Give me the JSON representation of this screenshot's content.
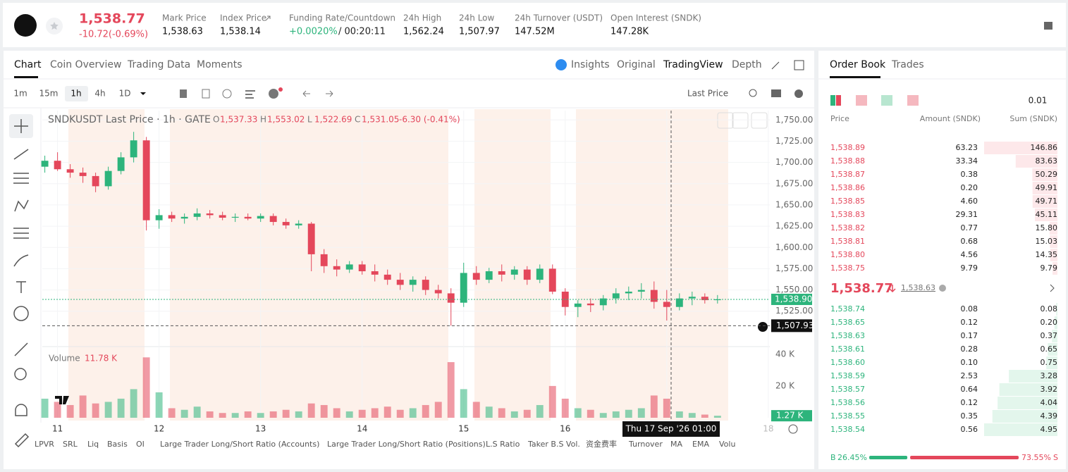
{
  "header": {
    "price": "1,538.77",
    "change": "-10.72(-0.69%)",
    "stats": [
      {
        "label": "Mark Price",
        "value": "1,538.63"
      },
      {
        "label": "Index Price",
        "value": "1,538.14"
      },
      {
        "label": "Funding Rate/Countdown",
        "value": "+0.0020%",
        "extra": "/ 00:20:11"
      },
      {
        "label": "24h High",
        "value": "1,562.24"
      },
      {
        "label": "24h Low",
        "value": "1,507.97"
      },
      {
        "label": "24h Turnover (USDT)",
        "value": "147.52M"
      },
      {
        "label": "Open Interest (SNDK)",
        "value": "147.28K"
      }
    ]
  },
  "chart_tabs": [
    "Chart",
    "Coin Overview",
    "Trading Data",
    "Moments"
  ],
  "view_tabs": [
    "Insights",
    "Original",
    "TradingView",
    "Depth"
  ],
  "intervals": [
    "1m",
    "15m",
    "1h",
    "4h",
    "1D"
  ],
  "price_source": "Last Price",
  "chart": {
    "type": "candlestick",
    "title": "SNDKUSDT Last Price · 1h · GATE",
    "legend_ohlc": [
      [
        "O",
        "1,537.33"
      ],
      [
        "H",
        "1,553.02"
      ],
      [
        "L",
        "1,522.69"
      ],
      [
        "C",
        "1,531.05"
      ]
    ],
    "legend_change": "-6.30 (-0.41%)",
    "up_color": "#2db47c",
    "down_color": "#e4475b",
    "x": [
      10.875,
      11,
      11.125,
      11.25,
      11.375,
      11.5,
      11.625,
      11.75,
      11.875,
      12,
      12.125,
      12.25,
      12.375,
      12.5,
      12.625,
      12.75,
      12.875,
      13,
      13.125,
      13.25,
      13.375,
      13.5,
      13.625,
      13.75,
      13.875,
      14,
      14.125,
      14.25,
      14.375,
      14.5,
      14.625,
      14.75,
      14.875,
      15,
      15.125,
      15.25,
      15.375,
      15.5,
      15.625,
      15.75,
      15.875,
      16,
      16.125,
      16.25,
      16.375,
      16.5,
      16.625,
      16.75,
      16.875,
      17,
      17.125,
      17.25,
      17.375,
      17.5
    ],
    "open": [
      1695,
      1702,
      1692,
      1688,
      1684,
      1672,
      1690,
      1706,
      1726,
      1632,
      1638,
      1634,
      1636,
      1640,
      1638,
      1635,
      1636,
      1634,
      1637,
      1630,
      1626,
      1628,
      1592,
      1578,
      1574,
      1580,
      1572,
      1568,
      1562,
      1556,
      1562,
      1550,
      1546,
      1535,
      1570,
      1562,
      1572,
      1568,
      1574,
      1562,
      1575,
      1548,
      1530,
      1534,
      1532,
      1540,
      1546,
      1548,
      1550,
      1536,
      1530,
      1540,
      1542,
      1538
    ],
    "high": [
      1708,
      1712,
      1698,
      1694,
      1688,
      1695,
      1712,
      1736,
      1730,
      1645,
      1642,
      1640,
      1646,
      1644,
      1642,
      1640,
      1640,
      1640,
      1640,
      1634,
      1632,
      1630,
      1598,
      1586,
      1584,
      1584,
      1580,
      1574,
      1570,
      1566,
      1566,
      1556,
      1552,
      1582,
      1578,
      1576,
      1580,
      1578,
      1578,
      1580,
      1580,
      1552,
      1538,
      1540,
      1544,
      1552,
      1554,
      1558,
      1560,
      1550,
      1546,
      1548,
      1546,
      1544
    ],
    "low": [
      1688,
      1690,
      1682,
      1676,
      1665,
      1668,
      1686,
      1700,
      1620,
      1622,
      1630,
      1628,
      1632,
      1634,
      1632,
      1630,
      1632,
      1630,
      1626,
      1622,
      1622,
      1572,
      1570,
      1566,
      1570,
      1568,
      1560,
      1556,
      1550,
      1548,
      1544,
      1540,
      1508,
      1530,
      1556,
      1558,
      1560,
      1562,
      1556,
      1558,
      1545,
      1520,
      1518,
      1524,
      1526,
      1534,
      1538,
      1540,
      1528,
      1514,
      1526,
      1532,
      1534,
      1534
    ],
    "close": [
      1702,
      1692,
      1688,
      1684,
      1672,
      1690,
      1706,
      1726,
      1632,
      1638,
      1634,
      1636,
      1640,
      1638,
      1635,
      1636,
      1634,
      1637,
      1630,
      1626,
      1628,
      1592,
      1578,
      1574,
      1580,
      1572,
      1568,
      1562,
      1556,
      1562,
      1550,
      1546,
      1535,
      1570,
      1562,
      1572,
      1568,
      1574,
      1562,
      1575,
      1548,
      1530,
      1534,
      1532,
      1540,
      1546,
      1548,
      1550,
      1536,
      1530,
      1540,
      1542,
      1538,
      1539
    ],
    "volume": [
      12,
      10,
      8,
      14,
      9,
      10,
      12,
      18,
      38,
      16,
      6,
      5,
      7,
      4,
      3,
      3,
      4,
      3,
      4,
      5,
      4,
      9,
      8,
      6,
      4,
      5,
      6,
      7,
      5,
      6,
      8,
      10,
      35,
      18,
      10,
      7,
      6,
      4,
      5,
      8,
      20,
      12,
      6,
      5,
      3,
      4,
      5,
      6,
      14,
      12,
      4,
      3,
      2,
      1.27
    ],
    "xlim": [
      10.85,
      18.015
    ],
    "xticks": [
      11,
      12,
      13,
      14,
      15,
      16,
      17,
      18
    ],
    "ylim": [
      1485,
      1761
    ],
    "yticks": [
      {
        "value": 1525,
        "label": "1,525.00"
      },
      {
        "value": 1550,
        "label": "1,550.00"
      },
      {
        "value": 1575,
        "label": "1,575.00"
      },
      {
        "value": 1600,
        "label": "1,600.00"
      },
      {
        "value": 1625,
        "label": "1,625.00"
      },
      {
        "value": 1650,
        "label": "1,650.00"
      },
      {
        "value": 1675,
        "label": "1,675.00"
      },
      {
        "value": 1700,
        "label": "1,700.00"
      },
      {
        "value": 1725,
        "label": "1,725.00"
      },
      {
        "value": 1750,
        "label": "1,750.00"
      }
    ],
    "volume_label": "Volume",
    "volume_value": "11.78 K",
    "volume_ylim": [
      0,
      43
    ],
    "volume_yticks": [
      {
        "value": 20,
        "label": "20 K"
      },
      {
        "value": 40,
        "label": "40 K"
      }
    ],
    "volume_last": {
      "value": 1.27,
      "label": "1.27 K"
    },
    "last_price": {
      "value": 1538.9,
      "label": "1,538.90"
    },
    "crosshair": {
      "value": 1507.93,
      "label": "1,507.93"
    },
    "crosshair_time": "Thu 17 Sep '26   01:00"
  },
  "indicators": [
    "LPVR",
    "SRL",
    "Liq",
    "Basis",
    "OI",
    "Large Trader Long/Short Ratio (Accounts)",
    "Large Trader Long/Short Ratio (Positions)",
    "L.S Ratio",
    "Taker B.S Vol.",
    "资金费率",
    "Turnover",
    "MA",
    "EMA",
    "Volu"
  ],
  "order_book": {
    "tabs": [
      "Order Book",
      "Trades"
    ],
    "precision": "0.01",
    "columns": [
      "Price",
      "Amount (SNDK)",
      "Sum (SNDK)"
    ],
    "asks": [
      {
        "price": "1,538.89",
        "amount": "63.23",
        "sum": 146.86
      },
      {
        "price": "1,538.88",
        "amount": "33.34",
        "sum": 83.63
      },
      {
        "price": "1,538.87",
        "amount": "0.38",
        "sum": 50.29
      },
      {
        "price": "1,538.86",
        "amount": "0.20",
        "sum": 49.91
      },
      {
        "price": "1,538.85",
        "amount": "4.60",
        "sum": 49.71
      },
      {
        "price": "1,538.83",
        "amount": "29.31",
        "sum": 45.11
      },
      {
        "price": "1,538.82",
        "amount": "0.77",
        "sum": {
          "value": 15.8,
          "label": "15.80"
        }
      },
      {
        "price": "1,538.81",
        "amount": "0.68",
        "sum": 15.03
      },
      {
        "price": "1,538.80",
        "amount": "4.56",
        "sum": 14.35
      },
      {
        "price": "1,538.75",
        "amount": "9.79",
        "sum": 9.79
      }
    ],
    "mid_price": "1,538.77",
    "mark_price": "1,538.63",
    "bids": [
      {
        "price": "1,538.74",
        "amount": "0.08",
        "sum": 0.08
      },
      {
        "price": "1,538.65",
        "amount": "0.12",
        "sum": {
          "value": 0.2,
          "label": "0.20"
        }
      },
      {
        "price": "1,538.63",
        "amount": "0.17",
        "sum": 0.37
      },
      {
        "price": "1,538.61",
        "amount": "0.28",
        "sum": 0.65
      },
      {
        "price": "1,538.60",
        "amount": "0.10",
        "sum": 0.75
      },
      {
        "price": "1,538.59",
        "amount": "2.53",
        "sum": 3.28
      },
      {
        "price": "1,538.57",
        "amount": "0.64",
        "sum": 3.92
      },
      {
        "price": "1,538.56",
        "amount": "0.12",
        "sum": 4.04
      },
      {
        "price": "1,538.55",
        "amount": "0.35",
        "sum": 4.39
      },
      {
        "price": "1,538.54",
        "amount": "0.56",
        "sum": 4.95
      }
    ],
    "ratio": {
      "buy_letter": "B",
      "buy": {
        "value": 26.45,
        "label": "26.45%"
      },
      "sell": {
        "value": 73.55,
        "label": "73.55%"
      },
      "sell_letter": "S"
    }
  }
}
